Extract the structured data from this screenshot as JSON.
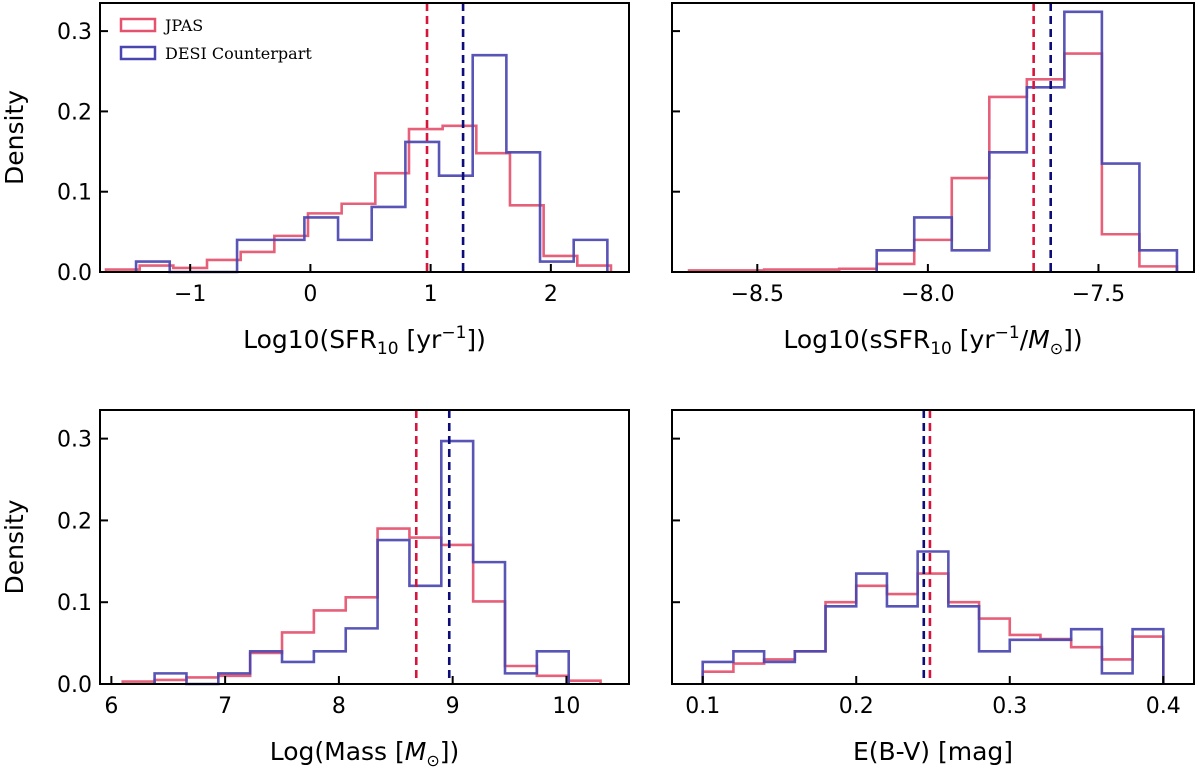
{
  "legend": {
    "items": [
      {
        "label": "JPAS",
        "color": "#e4526e"
      },
      {
        "label": "DESI Counterpart",
        "color": "#4a46b0"
      }
    ]
  },
  "colors": {
    "jpas": "#e4526e",
    "desi": "#4a46b0",
    "jpas_median": "#d6153c",
    "desi_median": "#0d0d7a",
    "axis": "#000000"
  },
  "chart_data": [
    {
      "type": "histogram",
      "xlabel": "Log10(SFR",
      "xlabel_sub": "10",
      "xlabel_tail1": " [yr",
      "xlabel_sup": "−1",
      "xlabel_tail2": "])",
      "ylabel": "Density",
      "xlim": [
        -1.75,
        2.65
      ],
      "ylim": [
        0,
        0.335
      ],
      "xticks": [
        -1,
        0,
        1,
        2
      ],
      "xtick_labels": [
        "−1",
        "0",
        "1",
        "2"
      ],
      "yticks": [
        0.0,
        0.1,
        0.2,
        0.3
      ],
      "ytick_labels": [
        "0.0",
        "0.1",
        "0.2",
        "0.3"
      ],
      "show_yticklabels": true,
      "series": [
        {
          "name": "JPAS",
          "edges": [
            -1.7,
            -1.42,
            -1.14,
            -0.86,
            -0.58,
            -0.3,
            -0.02,
            0.26,
            0.54,
            0.82,
            1.1,
            1.38,
            1.66,
            1.94,
            2.22,
            2.5
          ],
          "values": [
            0.003,
            0.008,
            0.005,
            0.015,
            0.025,
            0.045,
            0.073,
            0.085,
            0.123,
            0.178,
            0.182,
            0.148,
            0.083,
            0.02,
            0.008
          ]
        },
        {
          "name": "DESI Counterpart",
          "edges": [
            -1.45,
            -1.17,
            -0.89,
            -0.61,
            -0.33,
            -0.05,
            0.23,
            0.51,
            0.79,
            1.07,
            1.35,
            1.63,
            1.91,
            2.19,
            2.47
          ],
          "values": [
            0.013,
            0.0,
            0.0,
            0.04,
            0.04,
            0.068,
            0.04,
            0.081,
            0.162,
            0.12,
            0.27,
            0.149,
            0.013,
            0.04
          ]
        }
      ],
      "medians": {
        "JPAS": 0.97,
        "DESI Counterpart": 1.27
      }
    },
    {
      "type": "histogram",
      "xlabel": "Log10(sSFR",
      "xlabel_sub": "10",
      "xlabel_tail1": " [yr",
      "xlabel_sup": "−1",
      "xlabel_tail2": "/",
      "xlabel_math": "M",
      "xlabel_math_sub": "⊙",
      "xlabel_tail3": "])",
      "ylabel": "",
      "xlim": [
        -8.75,
        -7.22
      ],
      "ylim": [
        0,
        0.335
      ],
      "xticks": [
        -8.5,
        -8.0,
        -7.5
      ],
      "xtick_labels": [
        "−8.5",
        "−8.0",
        "−7.5"
      ],
      "yticks": [
        0.0,
        0.1,
        0.2,
        0.3
      ],
      "ytick_labels": [
        "",
        "",
        "",
        ""
      ],
      "show_yticklabels": false,
      "series": [
        {
          "name": "JPAS",
          "edges": [
            -8.7,
            -8.59,
            -8.48,
            -8.37,
            -8.26,
            -8.15,
            -8.04,
            -7.93,
            -7.82,
            -7.71,
            -7.6,
            -7.49,
            -7.38,
            -7.27
          ],
          "values": [
            0.002,
            0.002,
            0.003,
            0.003,
            0.004,
            0.01,
            0.04,
            0.117,
            0.218,
            0.24,
            0.272,
            0.047,
            0.007
          ]
        },
        {
          "name": "DESI Counterpart",
          "edges": [
            -8.15,
            -8.04,
            -7.93,
            -7.82,
            -7.71,
            -7.6,
            -7.49,
            -7.38,
            -7.27
          ],
          "values": [
            0.027,
            0.068,
            0.027,
            0.149,
            0.23,
            0.324,
            0.135,
            0.027
          ]
        }
      ],
      "medians": {
        "JPAS": -7.69,
        "DESI Counterpart": -7.64
      }
    },
    {
      "type": "histogram",
      "xlabel": "Log(Mass [",
      "xlabel_math": "M",
      "xlabel_math_sub": "⊙",
      "xlabel_tail3": "])",
      "ylabel": "Density",
      "xlim": [
        5.9,
        10.55
      ],
      "ylim": [
        0,
        0.335
      ],
      "xticks": [
        6,
        7,
        8,
        9,
        10
      ],
      "xtick_labels": [
        "6",
        "7",
        "8",
        "9",
        "10"
      ],
      "yticks": [
        0.0,
        0.1,
        0.2,
        0.3
      ],
      "ytick_labels": [
        "0.0",
        "0.1",
        "0.2",
        "0.3"
      ],
      "show_yticklabels": true,
      "series": [
        {
          "name": "JPAS",
          "edges": [
            6.1,
            6.38,
            6.66,
            6.94,
            7.22,
            7.5,
            7.78,
            8.06,
            8.34,
            8.62,
            8.9,
            9.18,
            9.46,
            9.74,
            10.02,
            10.3
          ],
          "values": [
            0.003,
            0.005,
            0.008,
            0.01,
            0.038,
            0.063,
            0.09,
            0.106,
            0.19,
            0.179,
            0.17,
            0.101,
            0.022,
            0.01,
            0.004
          ]
        },
        {
          "name": "DESI Counterpart",
          "edges": [
            6.38,
            6.66,
            6.94,
            7.22,
            7.5,
            7.78,
            8.06,
            8.34,
            8.62,
            8.9,
            9.18,
            9.46,
            9.74,
            10.02
          ],
          "values": [
            0.013,
            0.0,
            0.013,
            0.04,
            0.027,
            0.04,
            0.068,
            0.176,
            0.12,
            0.297,
            0.149,
            0.013,
            0.04
          ]
        }
      ],
      "medians": {
        "JPAS": 8.68,
        "DESI Counterpart": 8.97
      }
    },
    {
      "type": "histogram",
      "xlabel": "E(B-V) [mag]",
      "ylabel": "",
      "xlim": [
        0.08,
        0.42
      ],
      "ylim": [
        0,
        0.335
      ],
      "xticks": [
        0.1,
        0.2,
        0.3,
        0.4
      ],
      "xtick_labels": [
        "0.1",
        "0.2",
        "0.3",
        "0.4"
      ],
      "yticks": [
        0.0,
        0.1,
        0.2,
        0.3
      ],
      "ytick_labels": [
        "",
        "",
        "",
        ""
      ],
      "show_yticklabels": false,
      "series": [
        {
          "name": "JPAS",
          "edges": [
            0.1,
            0.12,
            0.14,
            0.16,
            0.18,
            0.2,
            0.22,
            0.24,
            0.26,
            0.28,
            0.3,
            0.32,
            0.34,
            0.36,
            0.38,
            0.4
          ],
          "values": [
            0.015,
            0.025,
            0.03,
            0.04,
            0.1,
            0.12,
            0.11,
            0.135,
            0.1,
            0.08,
            0.06,
            0.055,
            0.045,
            0.03,
            0.058
          ]
        },
        {
          "name": "DESI Counterpart",
          "edges": [
            0.1,
            0.12,
            0.14,
            0.16,
            0.18,
            0.2,
            0.22,
            0.24,
            0.26,
            0.28,
            0.3,
            0.32,
            0.34,
            0.36,
            0.38,
            0.4
          ],
          "values": [
            0.027,
            0.04,
            0.027,
            0.04,
            0.095,
            0.135,
            0.095,
            0.162,
            0.095,
            0.04,
            0.054,
            0.054,
            0.067,
            0.013,
            0.067
          ]
        }
      ],
      "medians": {
        "JPAS": 0.248,
        "DESI Counterpart": 0.244
      }
    }
  ]
}
